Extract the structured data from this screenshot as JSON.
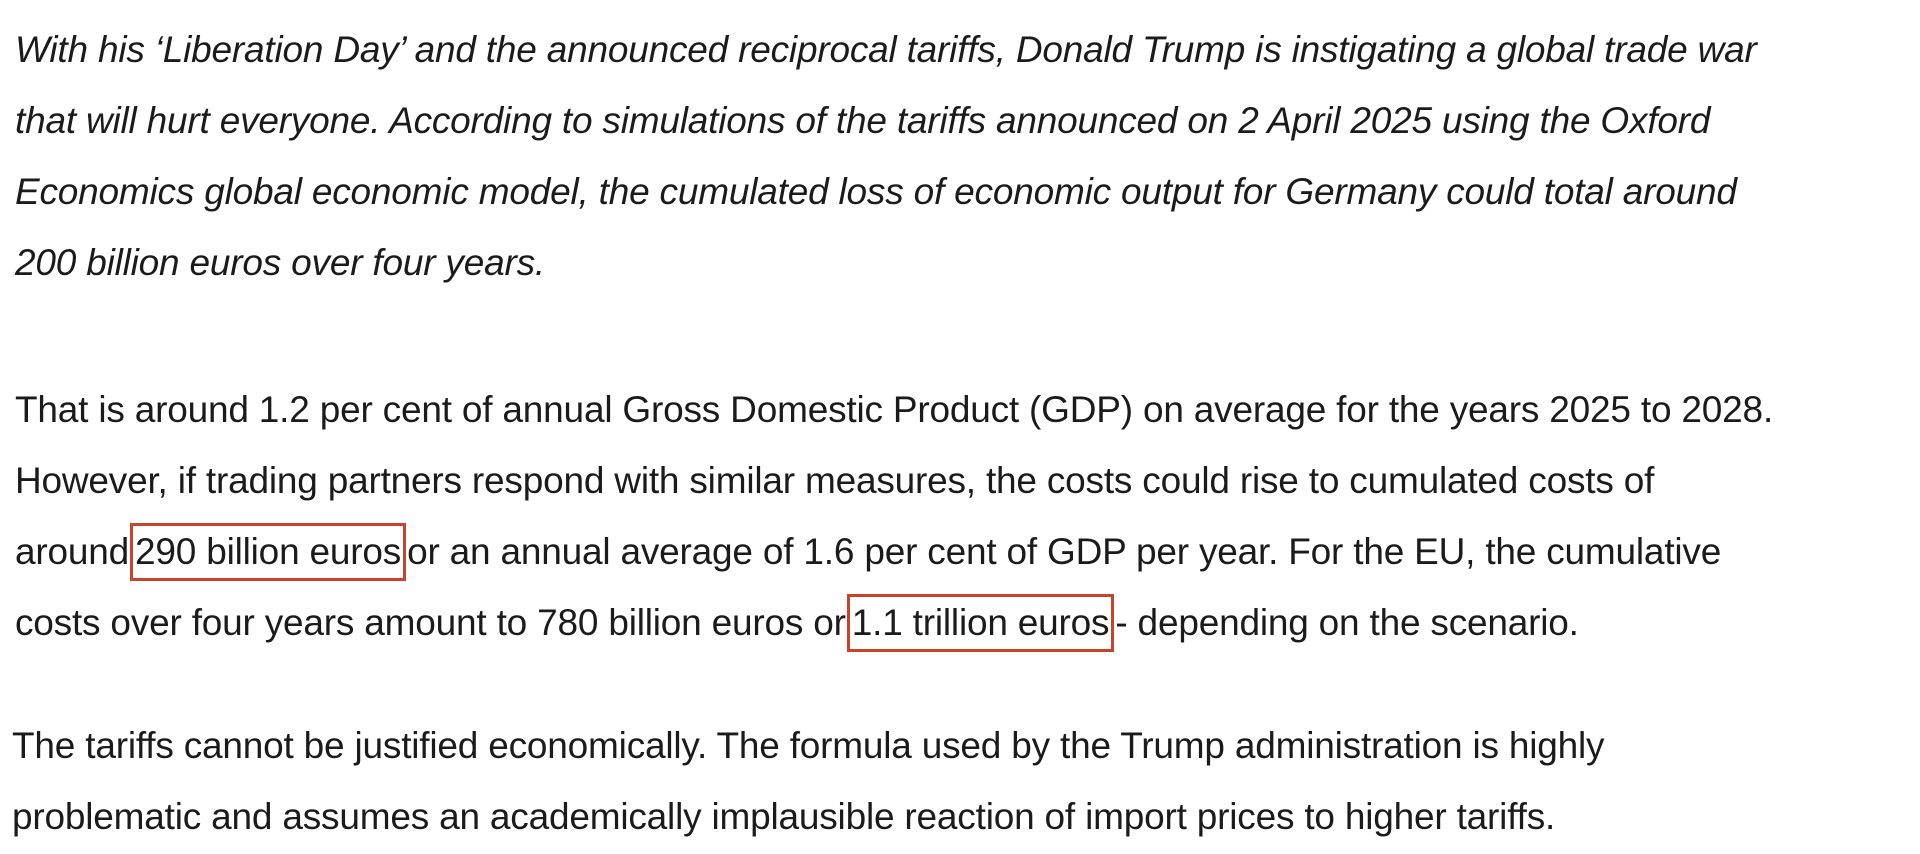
{
  "intro": {
    "lines": [
      "With his ‘Liberation Day’ and the announced reciprocal tariffs, Donald Trump is instigating a global trade war",
      "that will hurt everyone. According to simulations of the tariffs announced on 2 April 2025 using the Oxford",
      "Economics global economic model, the cumulated loss of economic output for Germany could total around",
      "200 billion euros over four years."
    ]
  },
  "body1": {
    "line1": "That is around 1.2 per cent of annual Gross Domestic Product (GDP) on average for the years 2025 to 2028.",
    "line2": "However, if trading partners respond with similar measures, the costs could rise to cumulated costs of",
    "line3_before": "around",
    "line3_highlight": "290 billion euros",
    "line3_after": "or an annual average of 1.6 per cent of GDP per year. For the EU, the cumulative",
    "line4_before": "costs over four years amount to 780 billion euros or",
    "line4_highlight": "1.1 trillion euros",
    "line4_after": "- depending on the scenario."
  },
  "body2": {
    "lines": [
      "The tariffs cannot be justified economically. The formula used by the Trump administration is highly",
      "problematic and assumes an academically implausible reaction of import prices to higher tariffs."
    ]
  },
  "colors": {
    "text": "#1b1b1b",
    "highlight_border": "#c8432a",
    "background": "#ffffff"
  }
}
